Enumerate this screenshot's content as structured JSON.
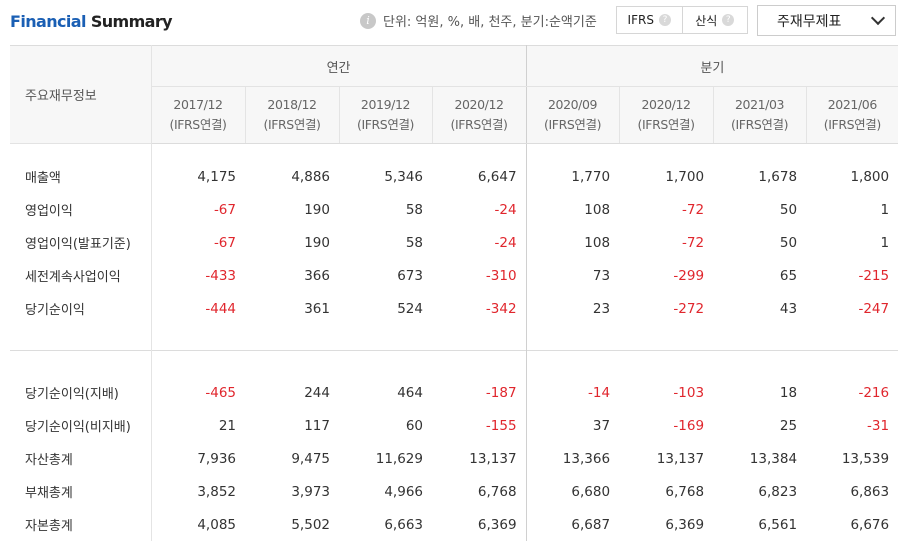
{
  "header": {
    "title_accent": "Financial",
    "title_rest": " Summary",
    "info_icon": "info-icon",
    "unit_text": "단위: 억원, %, 배, 천주, 분기:순액기준",
    "toggle": [
      {
        "label": "IFRS",
        "help_icon": "?"
      },
      {
        "label": "산식",
        "help_icon": "?"
      }
    ],
    "select_value": "주재무제표"
  },
  "table": {
    "label_header": "주요재무정보",
    "group_annual": "연간",
    "group_quarter": "분기",
    "periods": [
      {
        "date": "2017/12",
        "basis": "(IFRS연결)"
      },
      {
        "date": "2018/12",
        "basis": "(IFRS연결)"
      },
      {
        "date": "2019/12",
        "basis": "(IFRS연결)"
      },
      {
        "date": "2020/12",
        "basis": "(IFRS연결)"
      },
      {
        "date": "2020/09",
        "basis": "(IFRS연결)"
      },
      {
        "date": "2020/12",
        "basis": "(IFRS연결)"
      },
      {
        "date": "2021/03",
        "basis": "(IFRS연결)"
      },
      {
        "date": "2021/06",
        "basis": "(IFRS연결)"
      }
    ],
    "section1": [
      {
        "label": "매출액",
        "values": [
          "4,175",
          "4,886",
          "5,346",
          "6,647",
          "1,770",
          "1,700",
          "1,678",
          "1,800"
        ]
      },
      {
        "label": "영업이익",
        "values": [
          "-67",
          "190",
          "58",
          "-24",
          "108",
          "-72",
          "50",
          "1"
        ]
      },
      {
        "label": "영업이익(발표기준)",
        "values": [
          "-67",
          "190",
          "58",
          "-24",
          "108",
          "-72",
          "50",
          "1"
        ]
      },
      {
        "label": "세전계속사업이익",
        "values": [
          "-433",
          "366",
          "673",
          "-310",
          "73",
          "-299",
          "65",
          "-215"
        ]
      },
      {
        "label": "당기순이익",
        "values": [
          "-444",
          "361",
          "524",
          "-342",
          "23",
          "-272",
          "43",
          "-247"
        ]
      }
    ],
    "section2": [
      {
        "label": "당기순이익(지배)",
        "values": [
          "-465",
          "244",
          "464",
          "-187",
          "-14",
          "-103",
          "18",
          "-216"
        ]
      },
      {
        "label": "당기순이익(비지배)",
        "values": [
          "21",
          "117",
          "60",
          "-155",
          "37",
          "-169",
          "25",
          "-31"
        ]
      },
      {
        "label": "자산총계",
        "values": [
          "7,936",
          "9,475",
          "11,629",
          "13,137",
          "13,366",
          "13,137",
          "13,384",
          "13,539"
        ]
      },
      {
        "label": "부채총계",
        "values": [
          "3,852",
          "3,973",
          "4,966",
          "6,768",
          "6,680",
          "6,768",
          "6,823",
          "6,863"
        ]
      },
      {
        "label": "자본총계",
        "values": [
          "4,085",
          "5,502",
          "6,663",
          "6,369",
          "6,687",
          "6,369",
          "6,561",
          "6,676"
        ]
      }
    ],
    "negative_color": "#e0262d"
  }
}
